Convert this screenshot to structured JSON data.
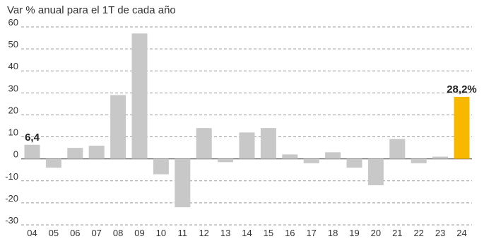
{
  "chart_data": {
    "type": "bar",
    "subtitle": "Var % anual para el 1T de cada año",
    "categories": [
      "04",
      "05",
      "06",
      "07",
      "08",
      "09",
      "10",
      "11",
      "12",
      "13",
      "14",
      "15",
      "16",
      "17",
      "18",
      "19",
      "20",
      "21",
      "22",
      "23",
      "24"
    ],
    "values": [
      6.4,
      -4,
      5,
      6,
      29,
      57,
      -7,
      -22,
      14,
      -1.5,
      12,
      14,
      2,
      -2,
      3,
      -4,
      -12,
      9,
      -2,
      1,
      28.2
    ],
    "ylim": [
      -30,
      60
    ],
    "yticks": [
      60,
      50,
      40,
      30,
      20,
      10,
      0,
      -10,
      -20,
      -30
    ],
    "ytick_labels": [
      "60",
      "50",
      "40",
      "30",
      "20",
      "10",
      "0",
      "-10",
      "-20",
      "-30"
    ],
    "data_labels": [
      {
        "category": "04",
        "text": "6,4"
      },
      {
        "category": "24",
        "text": "28,2%"
      }
    ],
    "grid": true,
    "colors": {
      "bar": "#c8c8c8",
      "highlight": "#f9b800",
      "grid": "#9a9a9a",
      "zero": "#555555",
      "text": "#333333"
    },
    "highlight_category": "24"
  }
}
